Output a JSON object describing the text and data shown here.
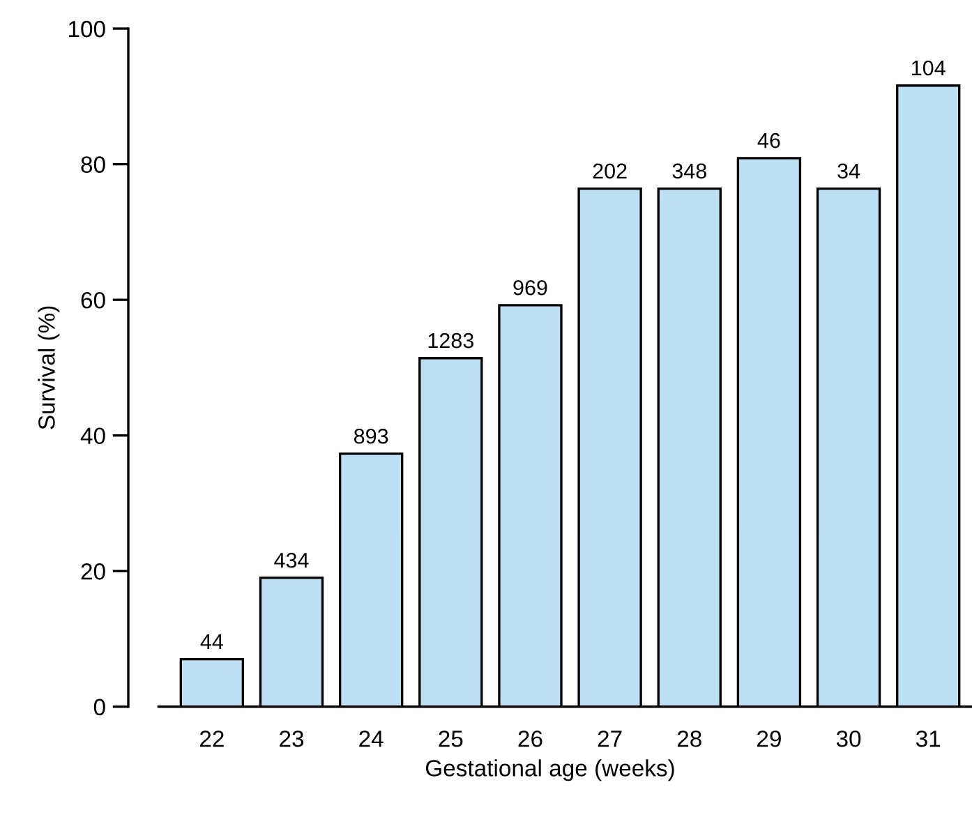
{
  "chart_data": {
    "type": "bar",
    "xlabel": "Gestational age (weeks)",
    "ylabel": "Survival (%)",
    "categories": [
      "22",
      "23",
      "24",
      "25",
      "26",
      "27",
      "28",
      "29",
      "30",
      "31"
    ],
    "values": [
      7.0,
      19.0,
      37.3,
      51.4,
      59.2,
      76.4,
      76.4,
      80.9,
      76.4,
      91.6
    ],
    "annotations": [
      {
        "text": "44",
        "x": "22",
        "y": 7.0
      },
      {
        "text": "434",
        "x": "23",
        "y": 19.0
      },
      {
        "text": "893",
        "x": "24",
        "y": 37.3
      },
      {
        "text": "1283",
        "x": "25",
        "y": 51.4
      },
      {
        "text": "969",
        "x": "26",
        "y": 59.2
      },
      {
        "text": "202",
        "x": "27",
        "y": 76.4
      },
      {
        "text": "348",
        "x": "28",
        "y": 76.4
      },
      {
        "text": "46",
        "x": "29",
        "y": 80.9
      },
      {
        "text": "34",
        "x": "30",
        "y": 76.4
      },
      {
        "text": "104",
        "x": "31",
        "y": 91.6
      }
    ],
    "color": "#bee0f5",
    "ylim": [
      0,
      100
    ],
    "yticks": [
      0,
      20,
      40,
      60,
      80,
      100
    ],
    "grid": false,
    "legend": false
  }
}
